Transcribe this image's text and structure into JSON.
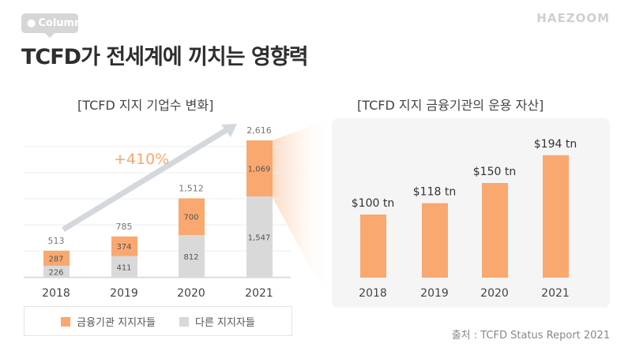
{
  "header": {
    "badge": "Column",
    "title": "TCFD가 전세계에 끼치는 영향력",
    "brand": "HAEZOOM"
  },
  "source": "출처 : TCFD Status Report 2021",
  "colors": {
    "orange": "#f9a86f",
    "gray": "#d9d9d9",
    "growth_text": "#f9a86f",
    "panel": "#f5f5f5"
  },
  "chart_data": [
    {
      "type": "bar",
      "stacked": true,
      "title": "[TCFD 지지 기업수 변화]",
      "categories": [
        "2018",
        "2019",
        "2020",
        "2021"
      ],
      "series": [
        {
          "name": "다른 지지자들",
          "values": [
            226,
            411,
            812,
            1547
          ]
        },
        {
          "name": "금융기관 지지자들",
          "values": [
            287,
            374,
            700,
            1069
          ]
        }
      ],
      "value_labels": [
        "226",
        "411",
        "812",
        "1,547",
        "287",
        "374",
        "700",
        "1,069"
      ],
      "totals": [
        513,
        785,
        1512,
        2616
      ],
      "total_labels": [
        "513",
        "785",
        "1,512",
        "2,616"
      ],
      "annotation": "+410%",
      "grid": true,
      "legend": "bottom"
    },
    {
      "type": "bar",
      "title": "[TCFD 지지 금융기관의 운용 자산]",
      "categories": [
        "2018",
        "2019",
        "2020",
        "2021"
      ],
      "values": [
        100,
        118,
        150,
        194
      ],
      "value_labels": [
        "$100 tn",
        "$118 tn",
        "$150 tn",
        "$194 tn"
      ],
      "grid": false
    }
  ]
}
